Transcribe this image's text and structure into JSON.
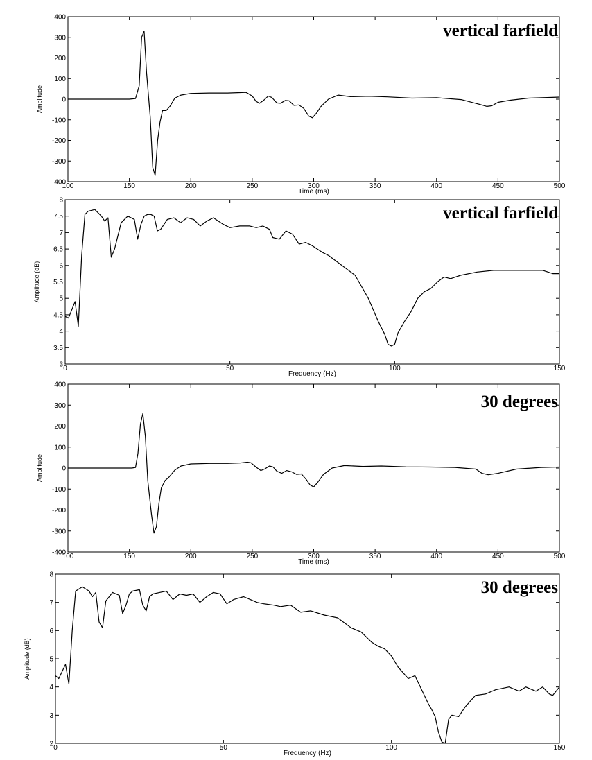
{
  "chart_data": [
    {
      "type": "line",
      "title": "vertical farfield",
      "xlabel": "Time (ms)",
      "ylabel": "Amplitude",
      "xlim": [
        100,
        500
      ],
      "ylim": [
        -400,
        400
      ],
      "xticks": [
        100,
        150,
        200,
        250,
        300,
        350,
        400,
        450,
        500
      ],
      "yticks": [
        -400,
        -300,
        -200,
        -100,
        0,
        100,
        200,
        300,
        400
      ],
      "x": [
        100,
        150,
        155,
        158,
        160,
        162,
        164,
        167,
        169,
        171,
        173,
        175,
        177,
        180,
        183,
        187,
        192,
        200,
        215,
        230,
        240,
        245,
        250,
        253,
        256,
        260,
        263,
        266,
        270,
        273,
        277,
        280,
        284,
        288,
        292,
        296,
        299,
        302,
        306,
        312,
        320,
        330,
        345,
        360,
        380,
        400,
        420,
        435,
        441,
        445,
        450,
        460,
        475,
        490,
        500
      ],
      "y": [
        0,
        0,
        3,
        65,
        300,
        330,
        130,
        -90,
        -330,
        -370,
        -200,
        -110,
        -55,
        -55,
        -35,
        5,
        20,
        28,
        30,
        30,
        32,
        33,
        15,
        -10,
        -20,
        -2,
        15,
        8,
        -18,
        -20,
        -6,
        -8,
        -30,
        -28,
        -45,
        -82,
        -90,
        -70,
        -35,
        0,
        20,
        12,
        14,
        11,
        5,
        7,
        -2,
        -25,
        -35,
        -32,
        -15,
        -5,
        5,
        8,
        10
      ]
    },
    {
      "type": "line",
      "title": "vertical farfield",
      "xlabel": "Frequency (Hz)",
      "ylabel": "Amplitude (dB)",
      "xlim": [
        0,
        150
      ],
      "ylim": [
        3,
        8
      ],
      "xticks": [
        0,
        50,
        100,
        150
      ],
      "yticks": [
        3,
        3.5,
        4,
        4.5,
        5,
        5.5,
        6,
        6.5,
        7,
        7.5,
        8
      ],
      "x": [
        0,
        1,
        3,
        4,
        5,
        6,
        7,
        9,
        11,
        12,
        13,
        14,
        15,
        17,
        19,
        21,
        22,
        23,
        24,
        25,
        26,
        27,
        28,
        29,
        31,
        33,
        35,
        37,
        39,
        41,
        43,
        45,
        48,
        50,
        53,
        56,
        58,
        60,
        62,
        63,
        65,
        67,
        69,
        71,
        73,
        75,
        78,
        80,
        84,
        88,
        92,
        95,
        97,
        98,
        99,
        100,
        101,
        103,
        105,
        107,
        109,
        111,
        113,
        115,
        117,
        120,
        125,
        130,
        135,
        140,
        145,
        148,
        150
      ],
      "y": [
        4.45,
        4.4,
        4.9,
        4.15,
        6.3,
        7.55,
        7.65,
        7.7,
        7.5,
        7.35,
        7.45,
        6.25,
        6.5,
        7.3,
        7.5,
        7.4,
        6.8,
        7.25,
        7.5,
        7.55,
        7.55,
        7.5,
        7.05,
        7.1,
        7.4,
        7.45,
        7.3,
        7.45,
        7.4,
        7.2,
        7.35,
        7.45,
        7.25,
        7.15,
        7.2,
        7.2,
        7.15,
        7.2,
        7.1,
        6.85,
        6.8,
        7.05,
        6.95,
        6.65,
        6.7,
        6.6,
        6.4,
        6.3,
        6.0,
        5.7,
        5.0,
        4.3,
        3.9,
        3.6,
        3.55,
        3.6,
        3.95,
        4.3,
        4.6,
        5.0,
        5.2,
        5.3,
        5.5,
        5.65,
        5.6,
        5.7,
        5.8,
        5.85,
        5.85,
        5.85,
        5.85,
        5.75,
        5.75
      ]
    },
    {
      "type": "line",
      "title": "30 degrees",
      "xlabel": "Time (ms)",
      "ylabel": "Amplitude",
      "xlim": [
        100,
        500
      ],
      "ylim": [
        -400,
        400
      ],
      "xticks": [
        100,
        150,
        200,
        250,
        300,
        350,
        400,
        450,
        500
      ],
      "yticks": [
        -400,
        -300,
        -200,
        -100,
        0,
        100,
        200,
        300,
        400
      ],
      "x": [
        100,
        152,
        155,
        157,
        159,
        161,
        163,
        165,
        168,
        170,
        172,
        174,
        176,
        179,
        182,
        187,
        192,
        200,
        215,
        230,
        240,
        246,
        249,
        253,
        257,
        260,
        264,
        267,
        270,
        274,
        278,
        282,
        286,
        290,
        294,
        297,
        300,
        303,
        308,
        315,
        325,
        340,
        355,
        375,
        395,
        415,
        432,
        437,
        442,
        450,
        465,
        485,
        500
      ],
      "y": [
        0,
        0,
        3,
        70,
        210,
        260,
        150,
        -60,
        -220,
        -310,
        -280,
        -170,
        -95,
        -60,
        -45,
        -10,
        10,
        20,
        22,
        22,
        24,
        28,
        25,
        5,
        -12,
        -5,
        10,
        5,
        -15,
        -25,
        -12,
        -18,
        -30,
        -28,
        -55,
        -80,
        -90,
        -70,
        -30,
        0,
        12,
        8,
        10,
        6,
        5,
        3,
        -5,
        -25,
        -32,
        -25,
        -5,
        3,
        5
      ]
    },
    {
      "type": "line",
      "title": "30 degrees",
      "xlabel": "Frequency (Hz)",
      "ylabel": "Amplitude (dB)",
      "xlim": [
        0,
        150
      ],
      "ylim": [
        2,
        8
      ],
      "xticks": [
        0,
        50,
        100,
        150
      ],
      "yticks": [
        2,
        3,
        4,
        5,
        6,
        7,
        8
      ],
      "x": [
        0,
        1,
        3,
        4,
        5,
        6,
        8,
        10,
        11,
        12,
        13,
        14,
        15,
        17,
        19,
        20,
        21,
        22,
        23,
        25,
        26,
        27,
        28,
        29,
        31,
        33,
        35,
        37,
        39,
        41,
        43,
        45,
        47,
        49,
        51,
        53,
        56,
        58,
        60,
        62,
        65,
        67,
        70,
        73,
        76,
        80,
        84,
        88,
        91,
        94,
        96,
        98,
        100,
        102,
        105,
        107,
        109,
        111,
        112,
        113,
        114,
        115,
        116,
        117,
        118,
        120,
        122,
        125,
        128,
        131,
        135,
        138,
        140,
        143,
        145,
        147,
        148,
        150
      ],
      "y": [
        4.4,
        4.3,
        4.8,
        4.1,
        6.0,
        7.4,
        7.55,
        7.4,
        7.2,
        7.35,
        6.3,
        6.1,
        7.05,
        7.35,
        7.25,
        6.6,
        6.9,
        7.3,
        7.4,
        7.45,
        6.9,
        6.7,
        7.2,
        7.3,
        7.35,
        7.4,
        7.1,
        7.3,
        7.25,
        7.3,
        7.0,
        7.2,
        7.35,
        7.3,
        6.95,
        7.1,
        7.2,
        7.1,
        7.0,
        6.95,
        6.9,
        6.85,
        6.9,
        6.65,
        6.7,
        6.55,
        6.45,
        6.1,
        5.95,
        5.6,
        5.45,
        5.35,
        5.1,
        4.7,
        4.3,
        4.4,
        3.9,
        3.4,
        3.2,
        2.95,
        2.4,
        2.05,
        2.0,
        2.85,
        3.0,
        2.95,
        3.3,
        3.7,
        3.75,
        3.9,
        4.0,
        3.85,
        4.0,
        3.85,
        4.0,
        3.75,
        3.7,
        4.0
      ]
    }
  ]
}
